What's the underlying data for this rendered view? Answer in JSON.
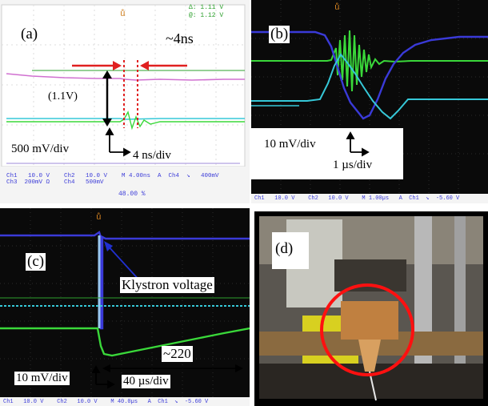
{
  "panels": {
    "a": {
      "label": "(a)",
      "pulse_width": "~4ns",
      "amplitude_note": "(1.1V)",
      "vdiv": "500 mV/div",
      "tdiv": "4 ns/div",
      "cursor_delta": "Δ:  1.11 V",
      "cursor_at": "@:  1.12 V",
      "status_line1": "Ch1   10.0 V    Ch2   10.0 V    M 4.00ns  A  Ch4  ↘   400mV",
      "status_line2": "Ch3  200mV Ω    Ch4   500mV",
      "trigger_pos": "48.00 %"
    },
    "b": {
      "label": "(b)",
      "vdiv": "10 mV/div",
      "tdiv": "1 µs/div",
      "status_line": "Ch1   10.0 V    Ch2   10.0 V    M 1.00µs   A  Ch1  ↘  -5.60 V"
    },
    "c": {
      "label": "(c)",
      "annotation": "Klystron voltage",
      "decay_note": "~220",
      "vdiv": "10 mV/div",
      "tdiv": "40 µs/div",
      "status_line": "Ch1   10.0 V    Ch2   10.0 V    M 40.0µs   A  Ch1  ↘  -5.60 V"
    },
    "d": {
      "label": "(d)"
    }
  },
  "colors": {
    "scope_bg": "#0a0a0a",
    "ch_blue": "#3a3ad8",
    "ch_cyan": "#36c8d8",
    "ch_green": "#3ad83a",
    "ch_pink": "#d070d0",
    "arrow_red": "#e02020",
    "annot_blue": "#2030d0"
  }
}
